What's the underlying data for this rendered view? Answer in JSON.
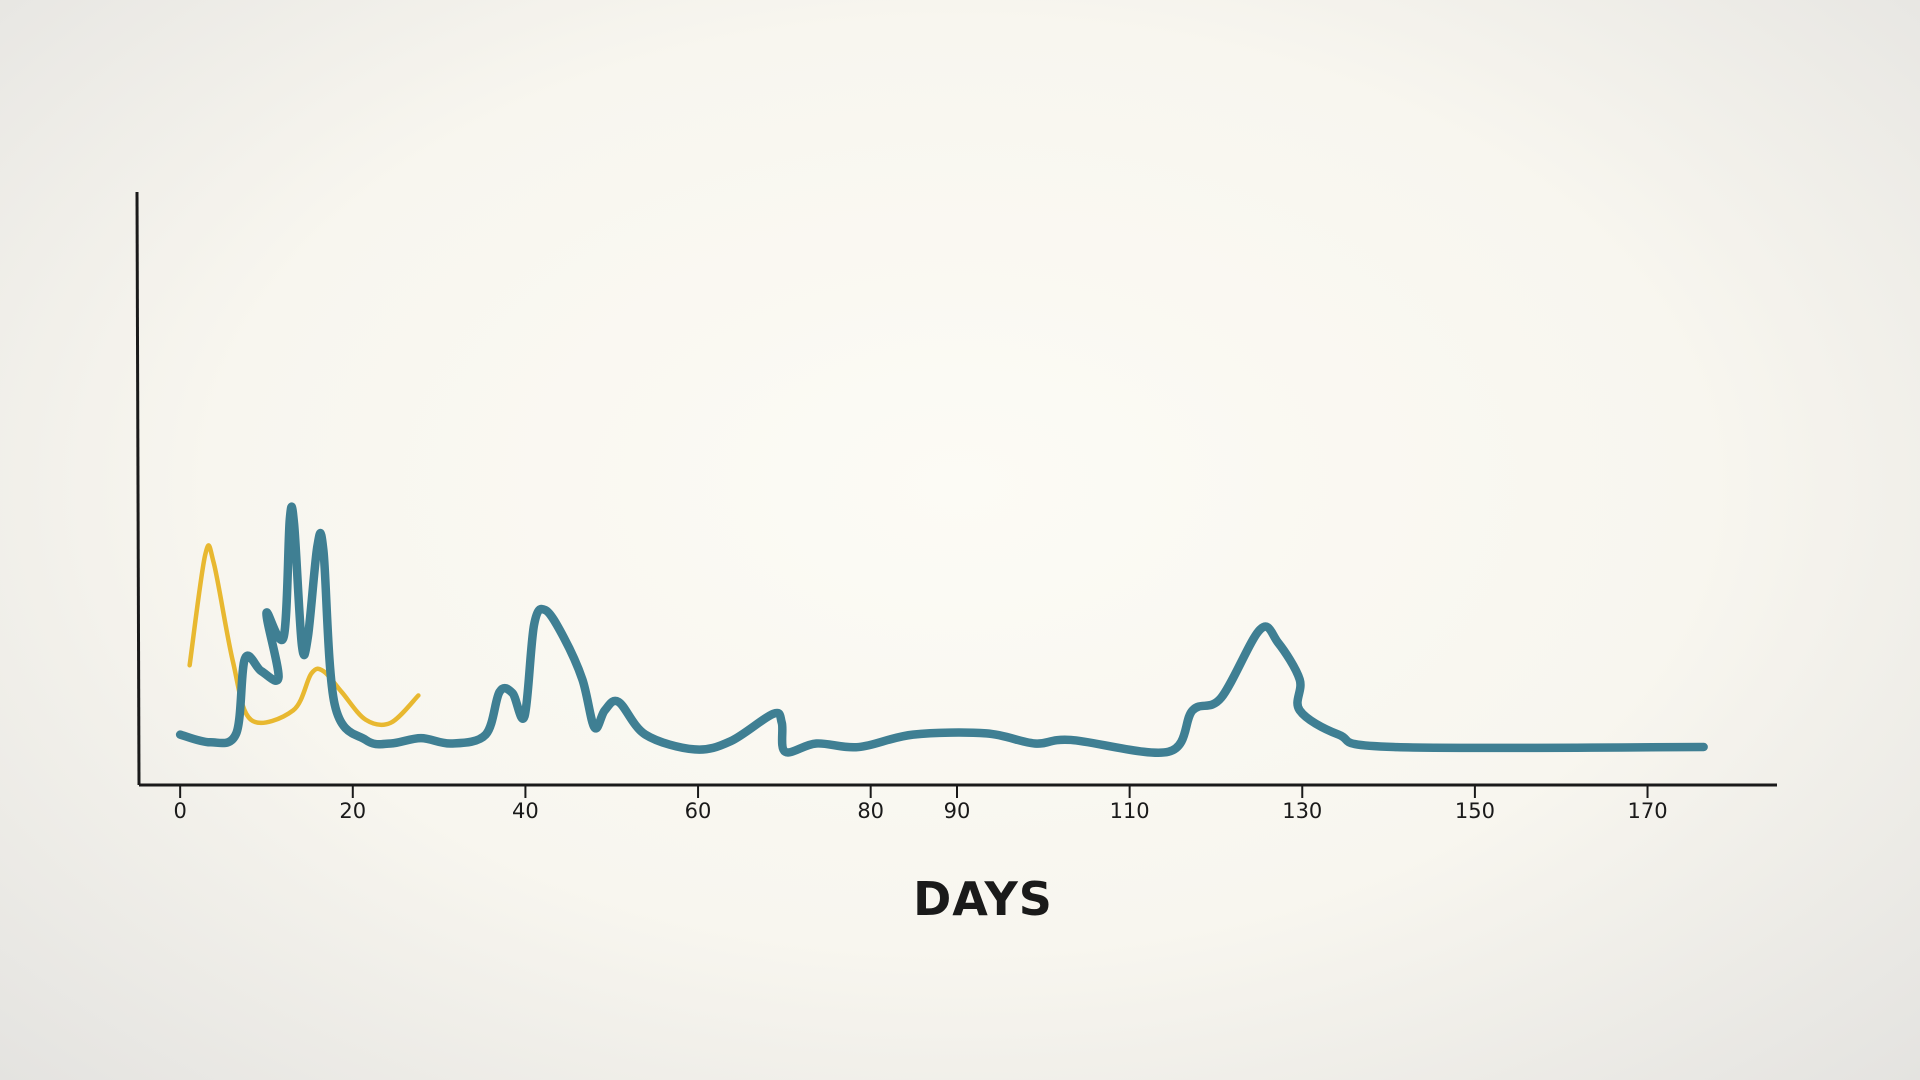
{
  "chart_data": {
    "type": "line",
    "xlabel": "DAYS",
    "xlim": [
      -5,
      185
    ],
    "ylim": [
      0,
      100
    ],
    "xticks": [
      0,
      20,
      40,
      60,
      80,
      90,
      110,
      130,
      150,
      170
    ],
    "series": [
      {
        "color": "#e8b830",
        "width": 4.5,
        "x": [
          1.1,
          2.9,
          3.9,
          6.1,
          8.2,
          13.1,
          15.2,
          16.6,
          18.7,
          21.5,
          24.4,
          27.6
        ],
        "values": [
          20.2,
          38.8,
          37.4,
          20.9,
          11,
          12.6,
          18.8,
          19.2,
          15.7,
          11,
          10.5,
          15.1
        ]
      },
      {
        "color": "#3f7f93",
        "width": 8.5,
        "x": [
          0,
          3.5,
          6.5,
          7.5,
          9.4,
          11.4,
          10,
          12,
          12.7,
          13.2,
          14.1,
          14.8,
          15.9,
          16.6,
          17.9,
          21.5,
          24.4,
          27.9,
          31.4,
          35.4,
          37,
          38.5,
          39.9,
          41,
          42.3,
          44.4,
          46.6,
          48,
          49.2,
          50.8,
          53.9,
          59.6,
          63.8,
          68.7,
          69.7,
          70.1,
          73.7,
          78.6,
          84.9,
          93.4,
          99,
          103.2,
          114.5,
          117.3,
          120.6,
          125.1,
          127.2,
          129.7,
          129.7,
          134.2,
          140.6,
          176.5
        ],
        "values": [
          8.5,
          7.2,
          8.7,
          21.3,
          19.2,
          18.2,
          29,
          25,
          44.8,
          44,
          23.6,
          25,
          40.3,
          39.5,
          13.6,
          7.6,
          7,
          7.9,
          7,
          8.5,
          15.7,
          15.5,
          11.6,
          27,
          29.5,
          25,
          17.8,
          9.7,
          12.6,
          14,
          8.5,
          6,
          7.4,
          12,
          10.5,
          5.6,
          7,
          6.4,
          8.5,
          8.7,
          7,
          7.6,
          5.6,
          12.6,
          14.7,
          26.2,
          24,
          17.8,
          12.6,
          8.5,
          6.4,
          6.4
        ]
      }
    ]
  }
}
